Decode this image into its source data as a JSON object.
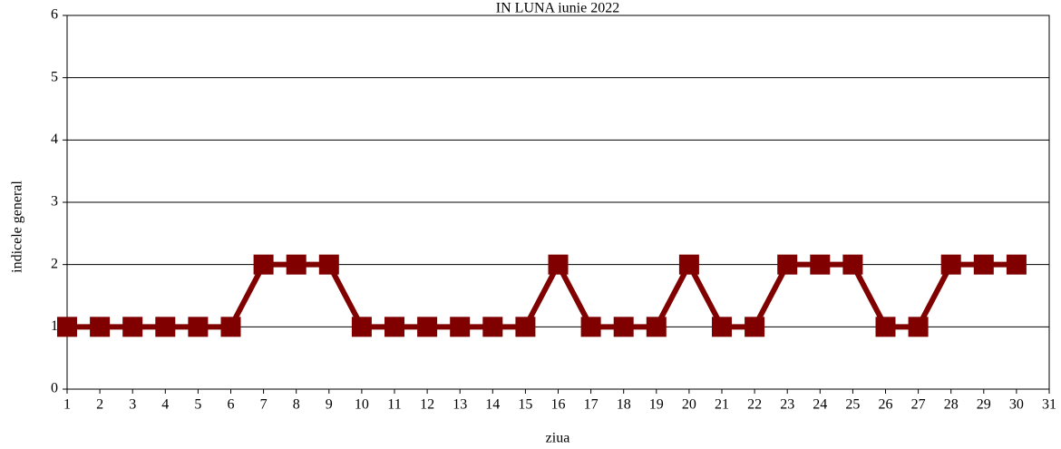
{
  "chart_data": {
    "type": "line",
    "title": "IN LUNA iunie  2022",
    "x_label": "ziua",
    "y_label": "indicele general",
    "x": [
      1,
      2,
      3,
      4,
      5,
      6,
      7,
      8,
      9,
      10,
      11,
      12,
      13,
      14,
      15,
      16,
      17,
      18,
      19,
      20,
      21,
      22,
      23,
      24,
      25,
      26,
      27,
      28,
      29,
      30
    ],
    "series": [
      {
        "name": "indicele general",
        "color": "#800000",
        "values": [
          1,
          1,
          1,
          1,
          1,
          1,
          2,
          2,
          2,
          1,
          1,
          1,
          1,
          1,
          1,
          2,
          1,
          1,
          1,
          2,
          1,
          1,
          2,
          2,
          2,
          1,
          1,
          2,
          2,
          2
        ]
      }
    ],
    "xlim": [
      1,
      31
    ],
    "xticks": [
      1,
      2,
      3,
      4,
      5,
      6,
      7,
      8,
      9,
      10,
      11,
      12,
      13,
      14,
      15,
      16,
      17,
      18,
      19,
      20,
      21,
      22,
      23,
      24,
      25,
      26,
      27,
      28,
      29,
      30,
      31
    ],
    "ylim": [
      0,
      6
    ],
    "yticks": [
      0,
      1,
      2,
      3,
      4,
      5,
      6
    ],
    "grid": true
  }
}
